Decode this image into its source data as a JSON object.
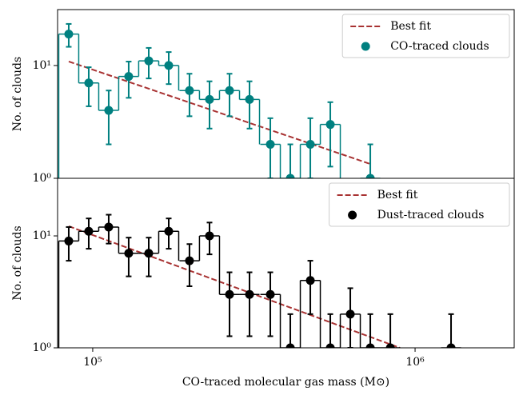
{
  "chart_data": [
    {
      "type": "step",
      "xscale": "log",
      "yscale": "log",
      "ylabel": "No. of clouds",
      "xlim": [
        77800,
        2030000
      ],
      "ylim": [
        1,
        31.3
      ],
      "yticks": [
        {
          "value": 1,
          "label": "10⁰"
        },
        {
          "value": 10,
          "label": "10¹"
        }
      ],
      "legend": "upper right",
      "series": [
        {
          "name": "Best fit",
          "kind": "fit",
          "color": "#a83232",
          "x": [
            84260,
            726300
          ],
          "values": [
            10.85,
            1.34
          ]
        },
        {
          "name": "CO-traced clouds",
          "kind": "hist",
          "color": "#008080",
          "x": [
            84260,
            97200,
            112100,
            129300,
            149200,
            172100,
            199600,
            230300,
            265700,
            306500,
            355600,
            410200,
            473200,
            545800,
            726300
          ],
          "values": [
            19,
            7,
            4,
            8,
            11,
            10,
            6,
            5,
            6,
            5,
            2,
            1,
            2,
            3,
            1
          ],
          "errors": [
            4.36,
            2.65,
            2,
            2.83,
            3.32,
            3.16,
            2.45,
            2.24,
            2.45,
            2.24,
            1.41,
            1,
            1.41,
            1.73,
            1
          ]
        }
      ]
    },
    {
      "type": "step",
      "xscale": "log",
      "yscale": "log",
      "ylabel": "No. of clouds",
      "xlabel": "CO-traced molecular gas mass (M⊙)",
      "xlim": [
        77800,
        2030000
      ],
      "ylim": [
        1,
        32.7
      ],
      "xticks": [
        {
          "value": 100000,
          "label": "10⁵"
        },
        {
          "value": 1000000,
          "label": "10⁶"
        }
      ],
      "yticks": [
        {
          "value": 1,
          "label": "10⁰"
        },
        {
          "value": 10,
          "label": "10¹"
        }
      ],
      "legend": "upper right",
      "series": [
        {
          "name": "Best fit",
          "kind": "fit",
          "color": "#a83232",
          "x": [
            84260,
            897000
          ],
          "values": [
            12.2,
            1.0
          ]
        },
        {
          "name": "Dust-traced clouds",
          "kind": "hist",
          "color": "#000000",
          "x": [
            84260,
            97200,
            112100,
            129300,
            149200,
            172100,
            199600,
            230300,
            265700,
            306500,
            355600,
            410200,
            473200,
            545800,
            629600,
            726300,
            838000,
            1293000
          ],
          "values": [
            9,
            11,
            12,
            7,
            7,
            11,
            6,
            10,
            3,
            3,
            3,
            1,
            4,
            1,
            2,
            1,
            1,
            1
          ],
          "errors": [
            3,
            3.32,
            3.46,
            2.65,
            2.65,
            3.32,
            2.45,
            3.16,
            1.73,
            1.73,
            1.73,
            1,
            2,
            1,
            1.41,
            1,
            1,
            1
          ]
        }
      ]
    }
  ]
}
